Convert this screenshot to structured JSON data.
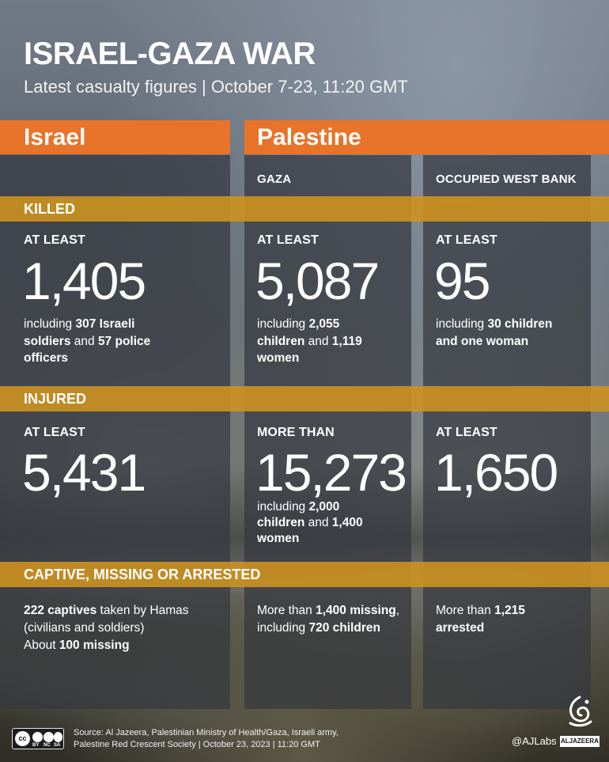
{
  "title": "ISRAEL-GAZA WAR",
  "subtitle": "Latest casualty figures  |  October 7-23, 11:20 GMT",
  "headers": {
    "israel": "Israel",
    "palestine": "Palestine"
  },
  "regions": {
    "gaza": "GAZA",
    "west_bank": "OCCUPIED WEST BANK"
  },
  "sections": {
    "killed": "KILLED",
    "injured": "INJURED",
    "captive": "CAPTIVE, MISSING OR ARRESTED"
  },
  "killed": {
    "israel": {
      "label": "AT LEAST",
      "value": "1,405",
      "note": [
        [
          "including ",
          false
        ],
        [
          "307 Israeli soldiers",
          true
        ],
        [
          " and ",
          false
        ],
        [
          "57 police officers",
          true
        ]
      ]
    },
    "gaza": {
      "label": "AT LEAST",
      "value": "5,087",
      "note": [
        [
          "including ",
          false
        ],
        [
          "2,055 children",
          true
        ],
        [
          " and ",
          false
        ],
        [
          "1,119 women",
          true
        ]
      ]
    },
    "west_bank": {
      "label": "AT LEAST",
      "value": "95",
      "note": [
        [
          "including ",
          false
        ],
        [
          "30 children and one woman",
          true
        ]
      ]
    }
  },
  "injured": {
    "israel": {
      "label": "AT LEAST",
      "value": "5,431"
    },
    "gaza": {
      "label": "MORE THAN",
      "value": "15,273",
      "note": [
        [
          "including ",
          false
        ],
        [
          "2,000 children",
          true
        ],
        [
          " and ",
          false
        ],
        [
          "1,400 women",
          true
        ]
      ]
    },
    "west_bank": {
      "label": "AT LEAST",
      "value": "1,650"
    }
  },
  "captive": {
    "israel_line1": [
      [
        "222 captives",
        true
      ],
      [
        " taken by Hamas (civilians and soldiers)",
        false
      ]
    ],
    "israel_line2": [
      [
        "About ",
        false
      ],
      [
        "100 missing",
        true
      ]
    ],
    "gaza": [
      [
        "More than ",
        false
      ],
      [
        "1,400 missing",
        true
      ],
      [
        ", including ",
        false
      ],
      [
        "720 children",
        true
      ]
    ],
    "west_bank": [
      [
        "More than ",
        false
      ],
      [
        "1,215 arrested",
        true
      ]
    ]
  },
  "footer": {
    "line1": "Source: Al Jazeera, Palestinian Ministry of Health/Gaza, Israeli army,",
    "line2": "Palestine Red Crescent Society   |   October 23, 2023   |   11:20 GMT",
    "handle": "@AJLabs",
    "logo_text": "ALJAZEERA",
    "cc_tiny": [
      "BY",
      "NC",
      "SA"
    ]
  },
  "colors": {
    "orange": "#e8732a",
    "band": "#cd9220",
    "panel": "#34383e"
  }
}
